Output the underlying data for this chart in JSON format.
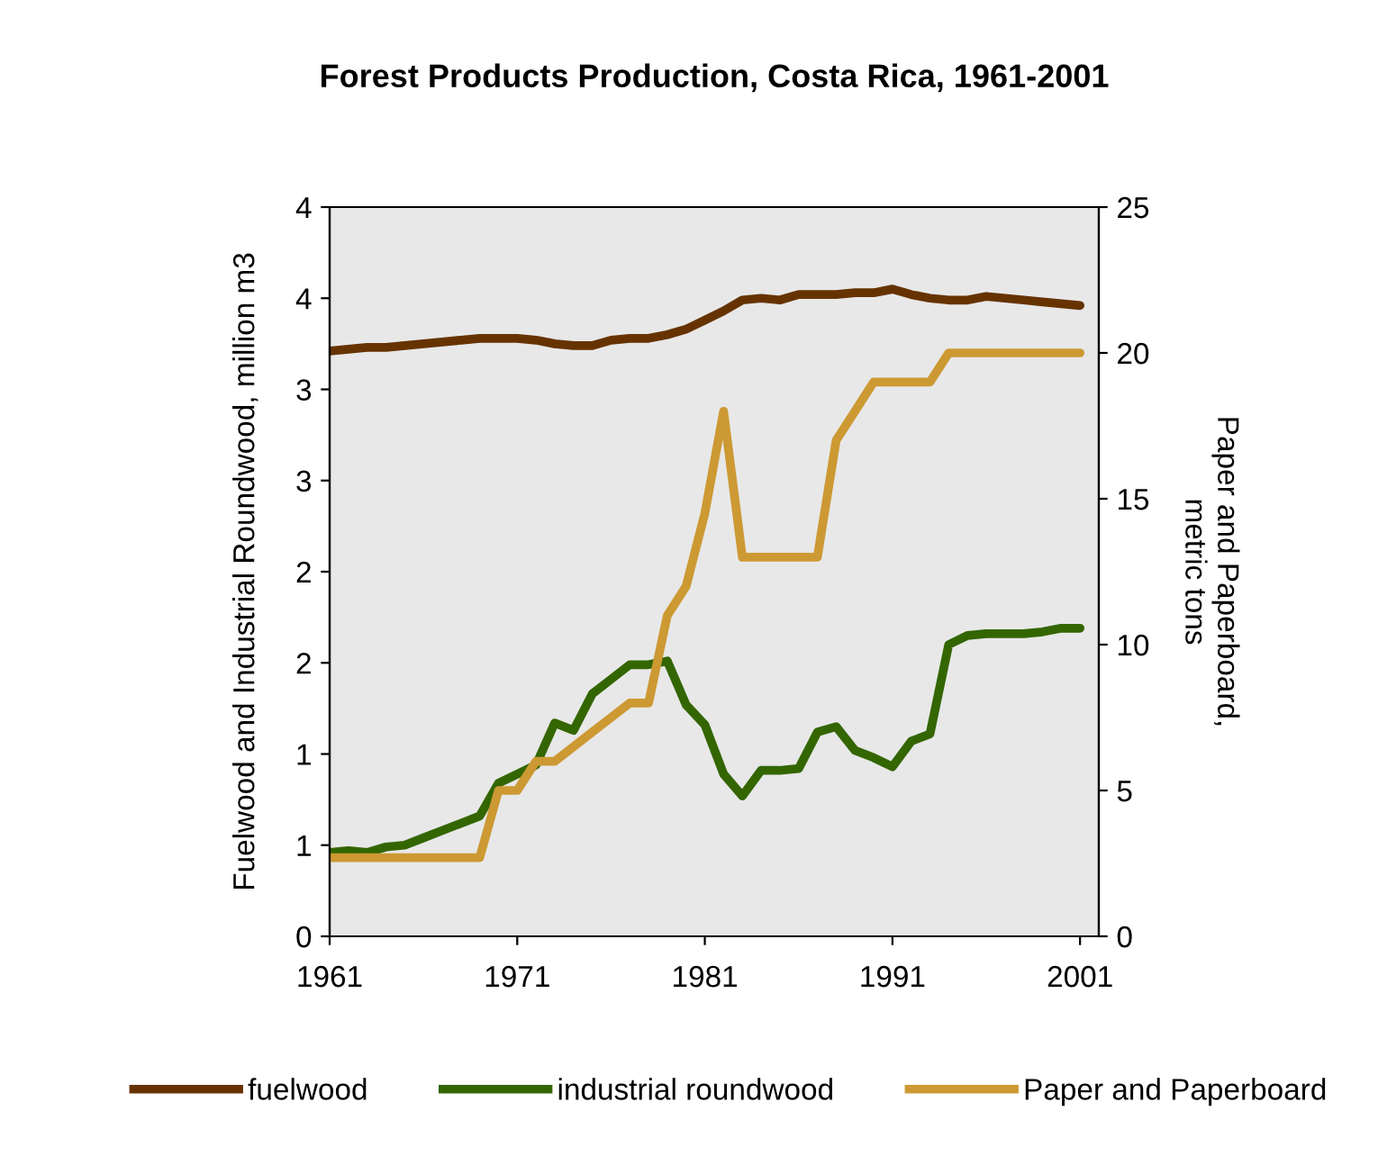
{
  "chart_data": {
    "type": "line",
    "title": "Forest Products Production, Costa Rica, 1961-2001",
    "ylabel": "Fuelwood and Industrial Roundwood, million m3",
    "y2label": "Paper and Paperboard,\nmetric tons",
    "x": [
      1961,
      1962,
      1963,
      1964,
      1965,
      1966,
      1967,
      1968,
      1969,
      1970,
      1971,
      1972,
      1973,
      1974,
      1975,
      1976,
      1977,
      1978,
      1979,
      1980,
      1981,
      1982,
      1983,
      1984,
      1985,
      1986,
      1987,
      1988,
      1989,
      1990,
      1991,
      1992,
      1993,
      1994,
      1995,
      1996,
      1997,
      1998,
      1999,
      2000,
      2001
    ],
    "xlim": [
      1961,
      2002
    ],
    "xticks": [
      1961,
      1971,
      1981,
      1991,
      2001
    ],
    "ylim": [
      0,
      4
    ],
    "yticks": [
      0,
      {
        "value": 0.5,
        "label": "1"
      },
      1,
      {
        "value": 1.5,
        "label": "2"
      },
      2,
      {
        "value": 2.5,
        "label": "3"
      },
      3,
      {
        "value": 3.5,
        "label": "4"
      },
      4
    ],
    "y2lim": [
      0,
      25
    ],
    "y2ticks": [
      0,
      5,
      10,
      15,
      20,
      25
    ],
    "grid": false,
    "legend": "bottom",
    "marker": "none",
    "line_style": "solid",
    "series": [
      {
        "name": "fuelwood",
        "color": "#663300",
        "values": [
          3.21,
          3.22,
          3.23,
          3.23,
          3.24,
          3.25,
          3.26,
          3.27,
          3.28,
          3.28,
          3.28,
          3.27,
          3.25,
          3.24,
          3.24,
          3.27,
          3.28,
          3.28,
          3.3,
          3.33,
          3.38,
          3.43,
          3.49,
          3.5,
          3.49,
          3.52,
          3.52,
          3.52,
          3.53,
          3.53,
          3.55,
          3.52,
          3.5,
          3.49,
          3.49,
          3.51,
          3.5,
          3.49,
          3.48,
          3.47,
          3.46
        ]
      },
      {
        "name": "industrial roundwood",
        "color": "#336600",
        "values": [
          0.46,
          0.47,
          0.46,
          0.49,
          0.5,
          0.54,
          0.58,
          0.62,
          0.66,
          0.84,
          0.89,
          0.94,
          1.17,
          1.13,
          1.33,
          1.41,
          1.49,
          1.49,
          1.51,
          1.27,
          1.16,
          0.89,
          0.77,
          0.91,
          0.91,
          0.92,
          1.12,
          1.15,
          1.02,
          0.98,
          0.93,
          1.07,
          1.11,
          1.6,
          1.65,
          1.66,
          1.66,
          1.66,
          1.67,
          1.69,
          1.69
        ]
      },
      {
        "name": "Paper and Paperboard",
        "color": "#cc9933",
        "axis": "y2",
        "values": [
          2.7,
          2.7,
          2.7,
          2.7,
          2.7,
          2.7,
          2.7,
          2.7,
          2.7,
          5,
          5,
          6,
          6,
          6.5,
          7,
          7.5,
          8,
          8,
          11,
          12,
          14.5,
          18,
          13,
          13,
          13,
          13,
          13,
          17,
          18,
          19,
          19,
          19,
          19,
          20,
          20,
          20,
          20,
          20,
          20,
          20,
          20
        ]
      }
    ]
  }
}
